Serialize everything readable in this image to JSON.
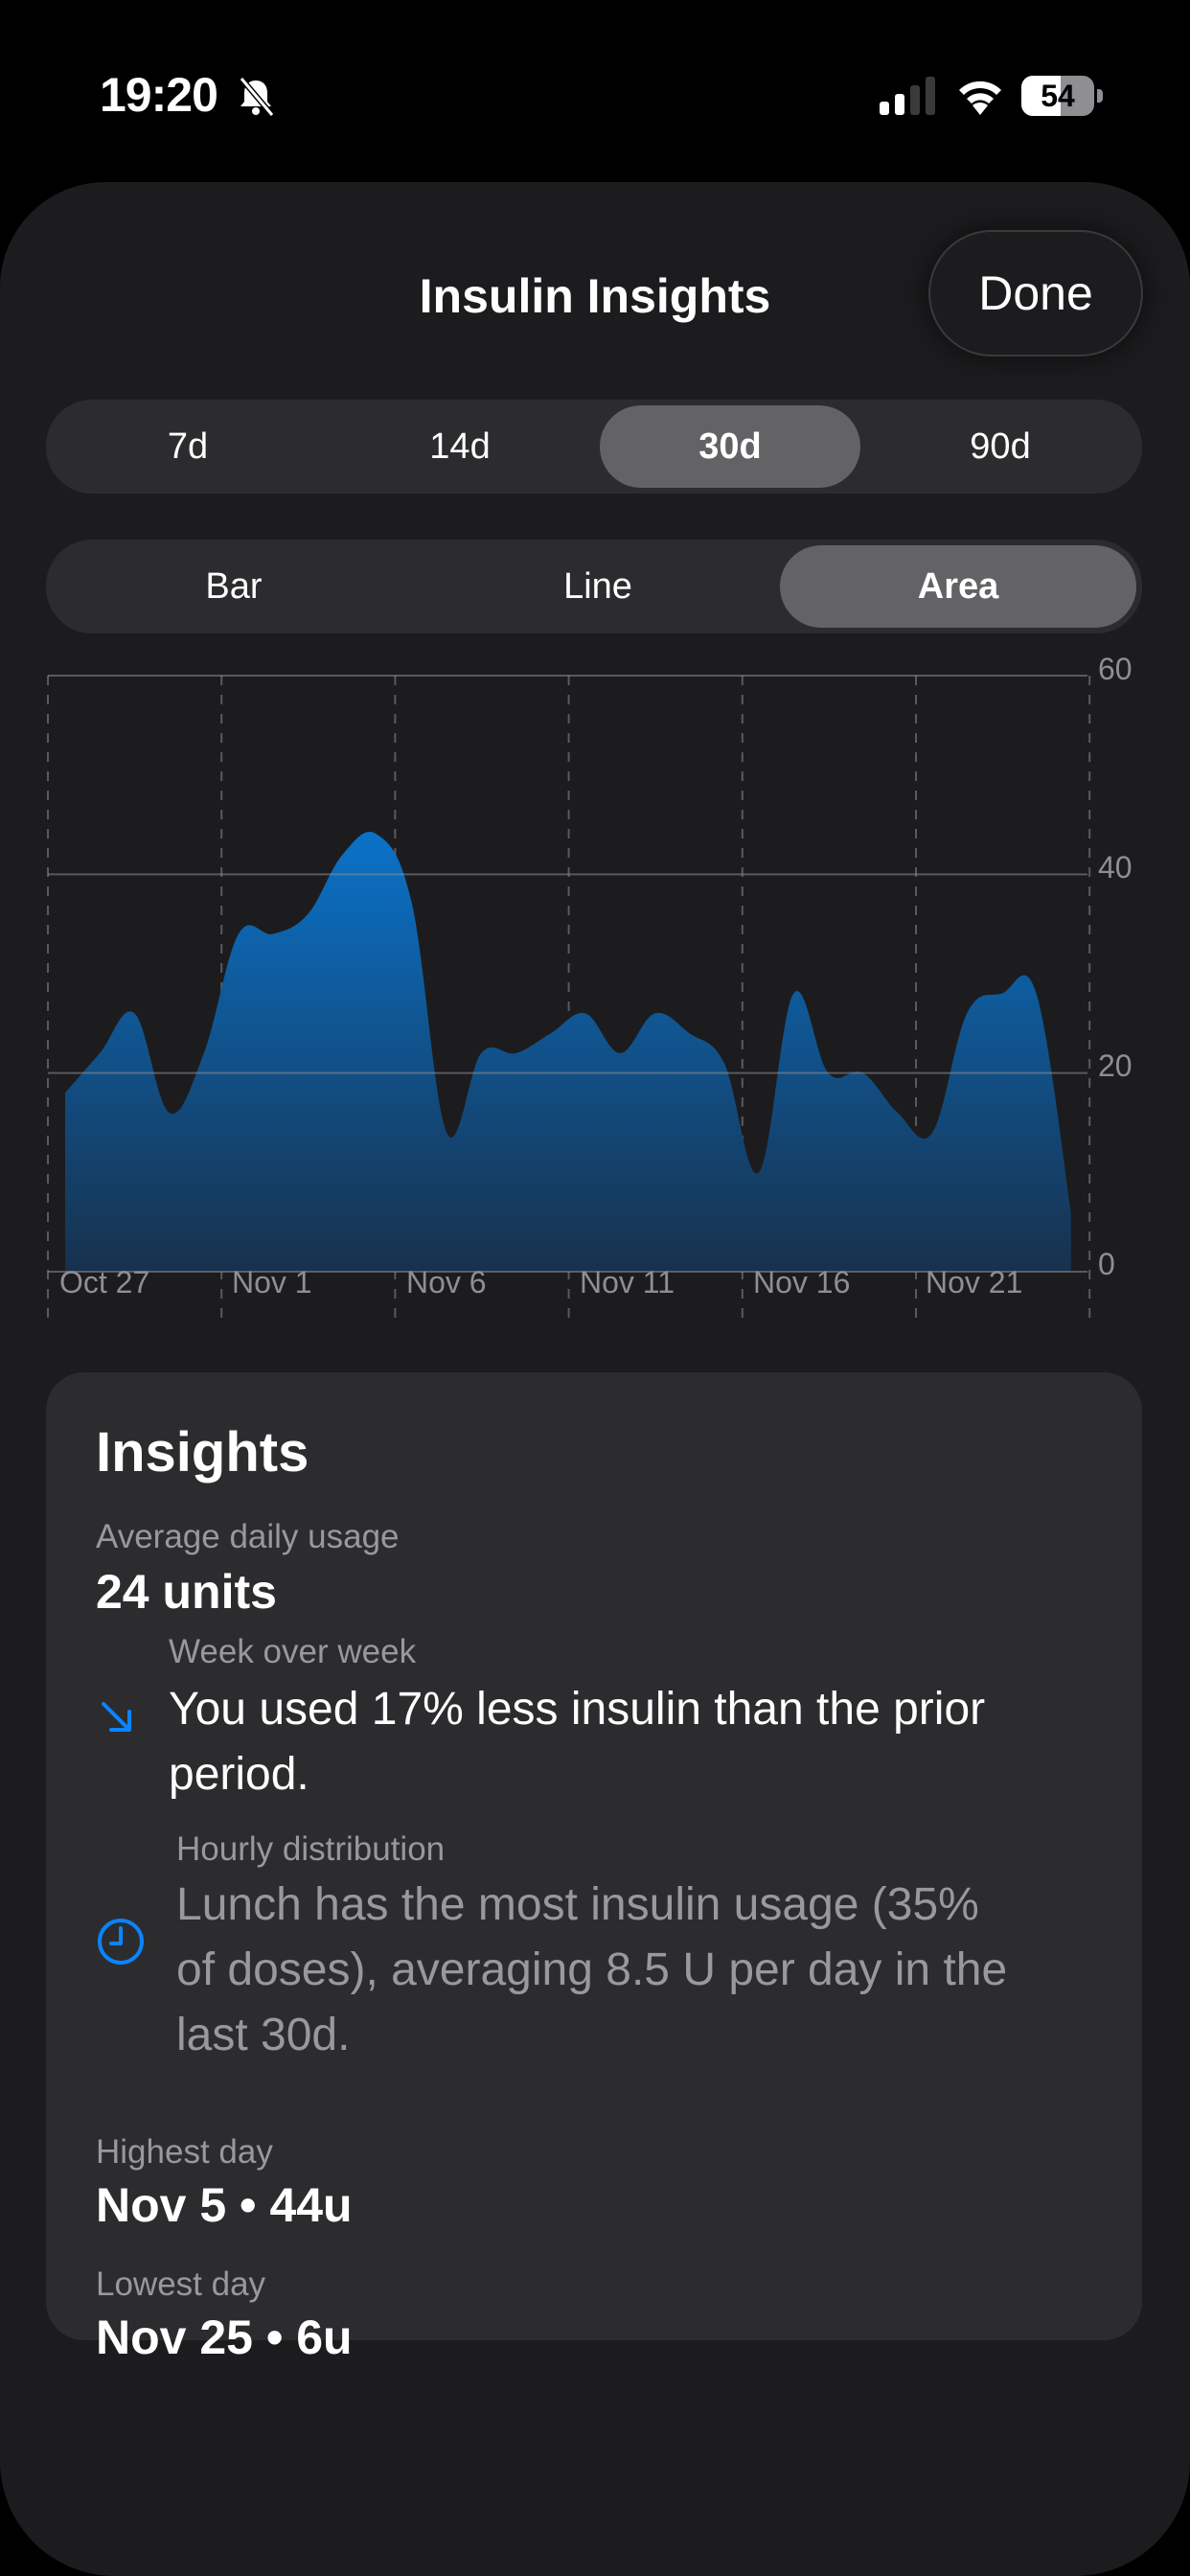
{
  "status_bar": {
    "time": "19:20",
    "silent_mode": true,
    "signal_bars": 2,
    "battery_percent": "54"
  },
  "header": {
    "title": "Insulin Insights",
    "done_label": "Done"
  },
  "range_selector": {
    "options": [
      "7d",
      "14d",
      "30d",
      "90d"
    ],
    "selected": "30d"
  },
  "chart_type_selector": {
    "options": [
      "Bar",
      "Line",
      "Area"
    ],
    "selected": "Area"
  },
  "colors": {
    "accent": "#0a84ff",
    "area_top": "#0a72c8",
    "area_bottom": "#17314d",
    "background": "#1c1c1e",
    "card": "#2c2c2e"
  },
  "chart_data": {
    "type": "area",
    "title": "",
    "xlabel": "",
    "ylabel": "",
    "x": [
      "Oct 27",
      "Oct 28",
      "Oct 29",
      "Oct 30",
      "Oct 31",
      "Nov 1",
      "Nov 2",
      "Nov 3",
      "Nov 4",
      "Nov 5",
      "Nov 6",
      "Nov 7",
      "Nov 8",
      "Nov 9",
      "Nov 10",
      "Nov 11",
      "Nov 12",
      "Nov 13",
      "Nov 14",
      "Nov 15",
      "Nov 16",
      "Nov 17",
      "Nov 18",
      "Nov 19",
      "Nov 20",
      "Nov 21",
      "Nov 22",
      "Nov 23",
      "Nov 24",
      "Nov 25"
    ],
    "values": [
      18,
      22,
      26,
      16,
      22,
      34,
      34,
      36,
      42,
      44,
      37,
      14,
      22,
      22,
      24,
      26,
      22,
      26,
      24,
      21,
      10,
      28,
      20,
      20,
      16,
      14,
      26,
      28,
      28,
      6
    ],
    "x_tick_labels": [
      "Oct 27",
      "Nov 1",
      "Nov 6",
      "Nov 11",
      "Nov 16",
      "Nov 21"
    ],
    "y_tick_labels": [
      "60",
      "40",
      "20",
      "0"
    ],
    "ylim": [
      0,
      60
    ],
    "grid": true,
    "y_axis_position": "right",
    "legend": null
  },
  "insights": {
    "title": "Insights",
    "average": {
      "label": "Average daily usage",
      "value": "24 units"
    },
    "week_over_week": {
      "icon": "arrow-down-right-icon",
      "label": "Week over week",
      "text": "You used 17% less insulin than the prior period."
    },
    "hourly_distribution": {
      "icon": "clock-icon",
      "label": "Hourly distribution",
      "text": "Lunch has the most insulin usage (35% of doses), averaging 8.5 U per day in the last 30d."
    },
    "highest_day": {
      "label": "Highest day",
      "value": "Nov 5 • 44u"
    },
    "lowest_day": {
      "label": "Lowest day",
      "value": "Nov 25 • 6u"
    }
  }
}
